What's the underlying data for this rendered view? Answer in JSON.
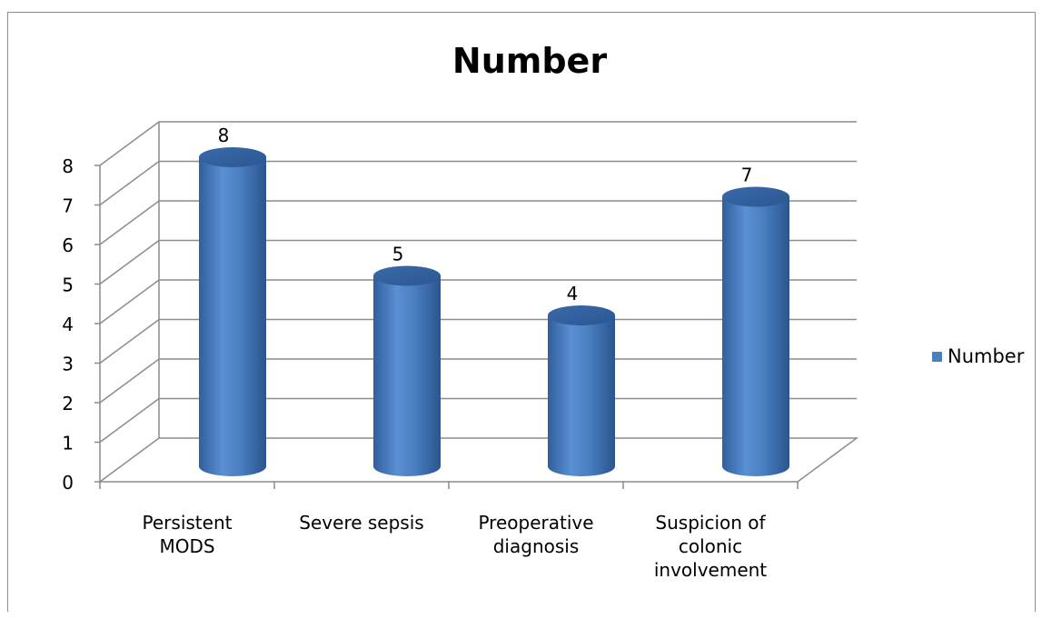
{
  "chart_data": {
    "type": "bar",
    "title": "Number",
    "categories": [
      [
        "Persistent",
        "MODS"
      ],
      [
        "Severe sepsis"
      ],
      [
        "Preoperative",
        "diagnosis"
      ],
      [
        "Suspicion of",
        "colonic",
        "involvement"
      ]
    ],
    "series": [
      {
        "name": "Number",
        "values": [
          8,
          5,
          4,
          7
        ],
        "color": "#4a7fc1"
      }
    ],
    "data_labels": [
      "8",
      "5",
      "4",
      "7"
    ],
    "ylim": [
      0,
      8
    ],
    "yticks": [
      "0",
      "1",
      "2",
      "3",
      "4",
      "5",
      "6",
      "7",
      "8"
    ],
    "grid": true,
    "legend": "right",
    "style": "3d-cylinder"
  }
}
